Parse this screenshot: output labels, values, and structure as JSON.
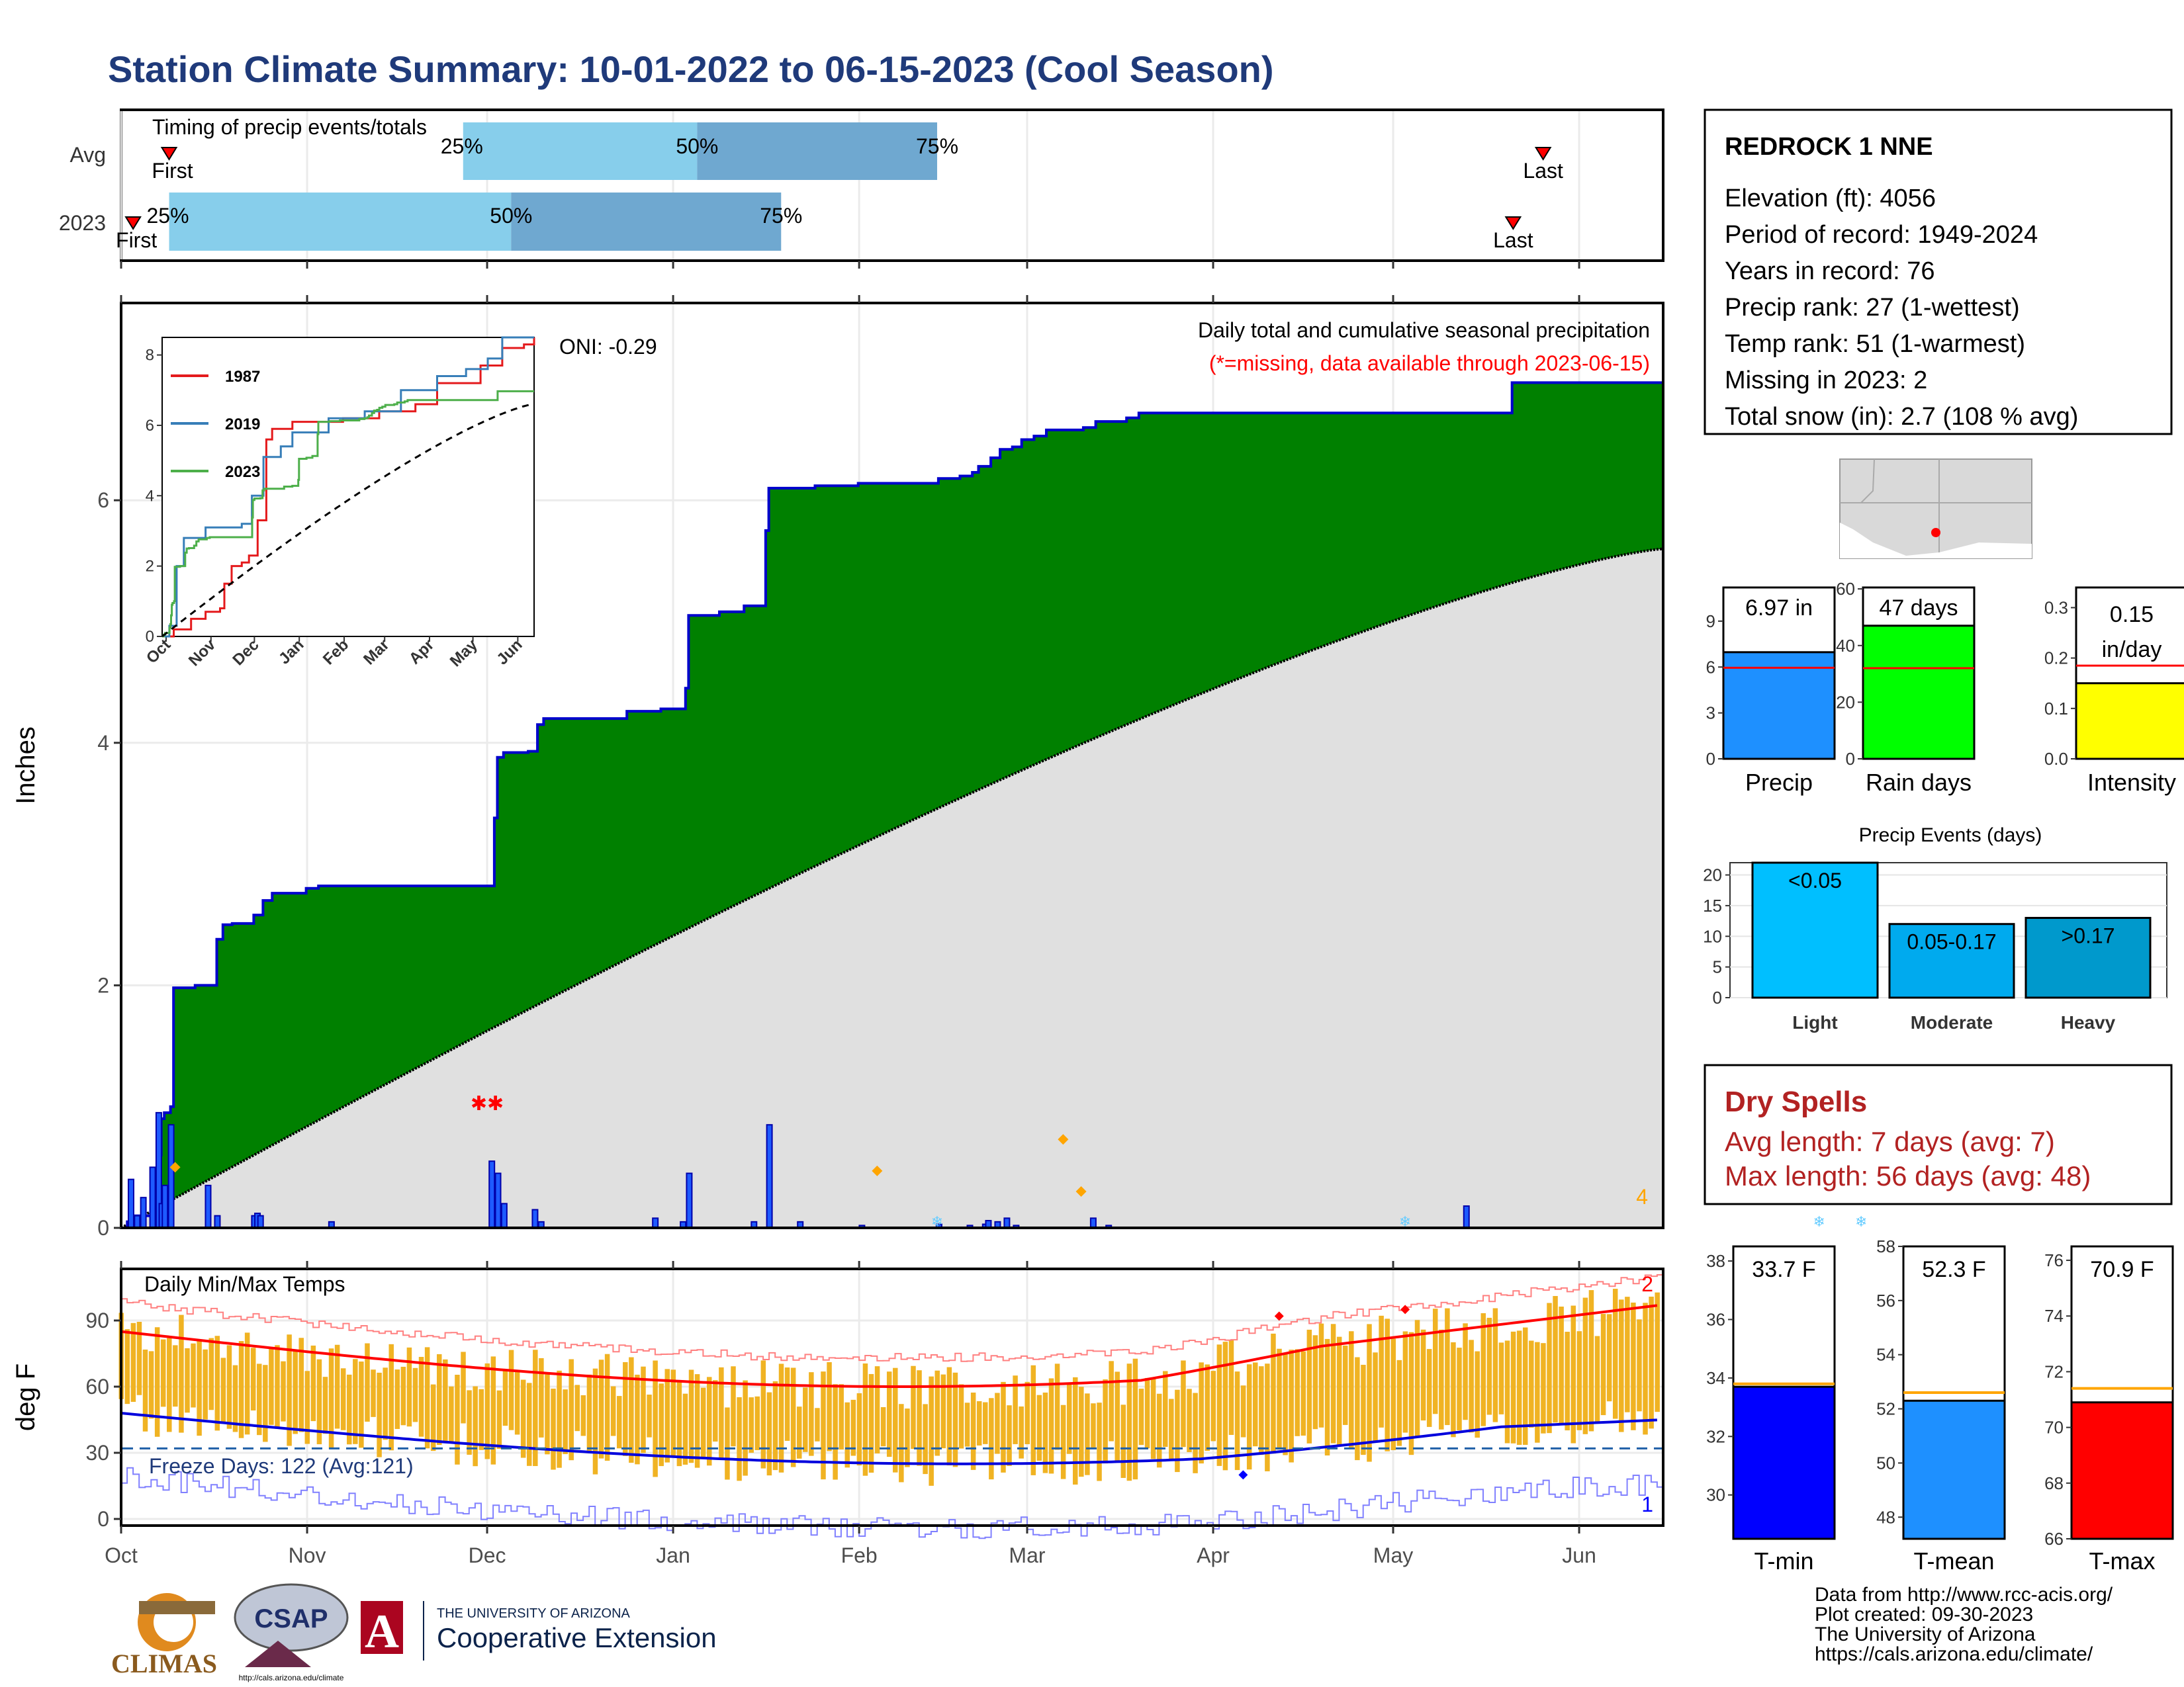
{
  "title": "Station Climate Summary: 10-01-2022 to 06-15-2023 (Cool Season)",
  "colors": {
    "title": "#1f3a7a",
    "cum_green": "#008000",
    "avg_gray": "#e0e0e0",
    "timing_light": "#87ceeb",
    "timing_dark": "#6fa8d0",
    "precip_bar": "#1e90ff",
    "raindays_bar": "#00ff00",
    "intensity_bar": "#ffff00",
    "events_light": "#00bfff",
    "events_moderate": "#00aaee",
    "events_heavy": "#0099cc",
    "dryspell_text": "#b22222",
    "tmin": "#0000ff",
    "tmean": "#1e90ff",
    "tmax": "#ff0000",
    "temp_bars": "#f0b323",
    "avg_line_orange": "#ffa500",
    "avg_line_red": "#ff0000",
    "freeze_line": "#1f5fa8"
  },
  "timing": {
    "header": "Timing of precip events/totals",
    "rows": [
      {
        "label": "Avg",
        "first_label": "First",
        "first": "10-09",
        "p25": "11-27",
        "p50": "01-05",
        "p75": "02-14",
        "last": "05-26",
        "last_label": "Last",
        "p25_label": "25%",
        "p50_label": "50%",
        "p75_label": "75%"
      },
      {
        "label": "2023",
        "first_label": "First",
        "first": "10-03",
        "p25": "10-09",
        "p50": "12-05",
        "p75": "01-19",
        "last": "05-21",
        "last_label": "Last",
        "p25_label": "25%",
        "p50_label": "50%",
        "p75_label": "75%"
      }
    ]
  },
  "main": {
    "title": "Daily total and cumulative seasonal precipitation",
    "subtitle": "(*=missing, data available through 2023-06-15)",
    "ylabel": "Inches",
    "yticks": [
      "0",
      "2",
      "4",
      "6"
    ],
    "oni": "ONI: -0.29",
    "corner_count": "4"
  },
  "inset": {
    "legend": [
      "1987",
      "2019",
      "2023"
    ],
    "yticks": [
      "0",
      "2",
      "4",
      "6",
      "8"
    ],
    "xticks": [
      "Oct",
      "Nov",
      "Dec",
      "Jan",
      "Feb",
      "Mar",
      "Apr",
      "May",
      "Jun"
    ]
  },
  "chart_data": [
    {
      "type": "area",
      "name": "cumulative",
      "ylim": [
        0,
        7.7
      ],
      "cum_2023": [
        [
          0,
          0
        ],
        [
          2,
          0.05
        ],
        [
          4,
          0.1
        ],
        [
          10,
          0.25
        ],
        [
          11,
          0.35
        ],
        [
          12,
          0.6
        ],
        [
          13,
          0.9
        ],
        [
          14,
          0.95
        ],
        [
          16,
          1.0
        ],
        [
          17,
          1.98
        ],
        [
          24,
          2.0
        ],
        [
          31,
          2.38
        ],
        [
          33,
          2.5
        ],
        [
          36,
          2.51
        ],
        [
          43,
          2.58
        ],
        [
          46,
          2.7
        ],
        [
          49,
          2.76
        ],
        [
          60,
          2.8
        ],
        [
          64,
          2.82
        ],
        [
          120,
          2.82
        ],
        [
          121,
          3.38
        ],
        [
          122,
          3.88
        ],
        [
          124,
          3.92
        ],
        [
          132,
          3.93
        ],
        [
          135,
          4.15
        ],
        [
          137,
          4.2
        ],
        [
          149,
          4.2
        ],
        [
          163,
          4.2
        ],
        [
          164,
          4.26
        ],
        [
          175,
          4.28
        ],
        [
          183,
          4.45
        ],
        [
          184,
          5.05
        ],
        [
          194,
          5.08
        ],
        [
          202,
          5.13
        ],
        [
          209,
          5.75
        ],
        [
          210,
          6.1
        ],
        [
          225,
          6.12
        ],
        [
          239,
          6.14
        ],
        [
          264,
          6.14
        ],
        [
          265,
          6.18
        ],
        [
          272,
          6.2
        ],
        [
          276,
          6.23
        ],
        [
          278,
          6.28
        ],
        [
          282,
          6.35
        ],
        [
          285,
          6.42
        ],
        [
          289,
          6.44
        ],
        [
          292,
          6.5
        ],
        [
          296,
          6.53
        ],
        [
          300,
          6.58
        ],
        [
          312,
          6.6
        ],
        [
          316,
          6.65
        ],
        [
          326,
          6.68
        ],
        [
          330,
          6.72
        ],
        [
          359,
          6.72
        ],
        [
          360,
          6.72
        ],
        [
          450,
          6.72
        ],
        [
          451,
          6.97
        ],
        [
          500,
          6.97
        ]
      ],
      "avg_cum_end": 5.6
    },
    {
      "type": "bar",
      "name": "daily precip",
      "bars": [
        [
          3,
          0.4
        ],
        [
          5,
          0.1
        ],
        [
          7,
          0.25
        ],
        [
          10,
          0.5
        ],
        [
          12,
          0.95
        ],
        [
          13,
          0.2
        ],
        [
          14,
          0.35
        ],
        [
          16,
          0.85
        ],
        [
          28,
          0.35
        ],
        [
          31,
          0.1
        ],
        [
          43,
          0.1
        ],
        [
          44,
          0.12
        ],
        [
          45,
          0.1
        ],
        [
          68,
          0.05
        ],
        [
          120,
          0.55
        ],
        [
          122,
          0.45
        ],
        [
          124,
          0.2
        ],
        [
          134,
          0.15
        ],
        [
          136,
          0.05
        ],
        [
          173,
          0.08
        ],
        [
          182,
          0.05
        ],
        [
          184,
          0.45
        ],
        [
          205,
          0.05
        ],
        [
          210,
          0.85
        ],
        [
          220,
          0.05
        ],
        [
          240,
          0.02
        ],
        [
          265,
          0.03
        ],
        [
          275,
          0.02
        ],
        [
          280,
          0.03
        ],
        [
          281,
          0.06
        ],
        [
          284,
          0.05
        ],
        [
          287,
          0.08
        ],
        [
          290,
          0.02
        ],
        [
          315,
          0.08
        ],
        [
          320,
          0.02
        ],
        [
          436,
          0.18
        ]
      ]
    },
    {
      "type": "bar",
      "name": "summary",
      "categories": [
        "Precip",
        "Rain days",
        "Intensity"
      ],
      "values": [
        6.97,
        47,
        0.15
      ],
      "avg": [
        5.9,
        32,
        0.18
      ],
      "labels": [
        "6.97 in",
        "47 days",
        "0.15",
        "in/day"
      ]
    },
    {
      "type": "bar",
      "name": "Precip Events (days)",
      "categories": [
        "Light",
        "Moderate",
        "Heavy"
      ],
      "bar_labels": [
        "<0.05",
        "0.05-0.17",
        ">0.17"
      ],
      "values": [
        22,
        12,
        13
      ],
      "ylim": [
        0,
        22
      ],
      "yticks": [
        "0",
        "5",
        "10",
        "15",
        "20"
      ]
    },
    {
      "type": "bar",
      "name": "temperature summaries",
      "categories": [
        "T-min",
        "T-mean",
        "T-max"
      ],
      "values": [
        33.7,
        52.3,
        70.9
      ],
      "avg": [
        33.8,
        52.6,
        71.4
      ],
      "labels": [
        "33.7 F",
        "52.3 F",
        "70.9 F"
      ],
      "ylims": [
        [
          28.5,
          38.5
        ],
        [
          47.2,
          58.0
        ],
        [
          66,
          76.5
        ]
      ]
    }
  ],
  "station": {
    "name": "REDROCK 1 NNE",
    "lines": [
      "Elevation (ft): 4056",
      "Period of record: 1949-2024",
      "Years in record: 76",
      "Precip rank: 27 (1-wettest)",
      "Temp rank: 51 (1-warmest)",
      "Missing in 2023: 2",
      "Total snow (in): 2.7 (108 % avg)"
    ]
  },
  "summary_bars": {
    "precip": {
      "label": "Precip",
      "value": "6.97 in",
      "yticks": [
        "0",
        "3",
        "6",
        "9"
      ]
    },
    "raindays": {
      "label": "Rain days",
      "value": "47 days",
      "yticks": [
        "0",
        "20",
        "40",
        "60"
      ]
    },
    "intensity": {
      "label": "Intensity",
      "value1": "0.15",
      "value2": "in/day",
      "yticks": [
        "0.0",
        "0.1",
        "0.2",
        "0.3"
      ]
    }
  },
  "events": {
    "title": "Precip Events (days)"
  },
  "dry_spells": {
    "title": "Dry Spells",
    "avg": "Avg length: 7 days (avg: 7)",
    "max": "Max length: 56 days (avg: 48)"
  },
  "temps": {
    "title": "Daily Min/Max Temps",
    "ylabel": "deg F",
    "yticks": [
      "0",
      "30",
      "60",
      "90"
    ],
    "freeze": "Freeze Days: 122 (Avg:121)",
    "count_top": "2",
    "count_bottom": "1",
    "xticks": [
      "Oct",
      "Nov",
      "Dec",
      "Jan",
      "Feb",
      "Mar",
      "Apr",
      "May",
      "Jun"
    ]
  },
  "temp_summaries": {
    "tmin": {
      "label": "T-min",
      "value": "33.7 F",
      "yticks": [
        "30",
        "32",
        "34",
        "36",
        "38"
      ]
    },
    "tmean": {
      "label": "T-mean",
      "value": "52.3 F",
      "yticks": [
        "48",
        "50",
        "52",
        "54",
        "56",
        "58"
      ]
    },
    "tmax": {
      "label": "T-max",
      "value": "70.9 F",
      "yticks": [
        "66",
        "68",
        "70",
        "72",
        "74",
        "76"
      ]
    }
  },
  "footer": {
    "lines": [
      "Data from http://www.rcc-acis.org/",
      "Plot created: 09-30-2023",
      "The University of Arizona",
      "https://cals.arizona.edu/climate/"
    ],
    "climas": "CLIMAS",
    "csap": "CSAP",
    "csap_url": "http://cals.arizona.edu/climate",
    "ua_small": "THE UNIVERSITY OF ARIZONA",
    "ua_big": "Cooperative Extension",
    "ua_letter": "A"
  }
}
